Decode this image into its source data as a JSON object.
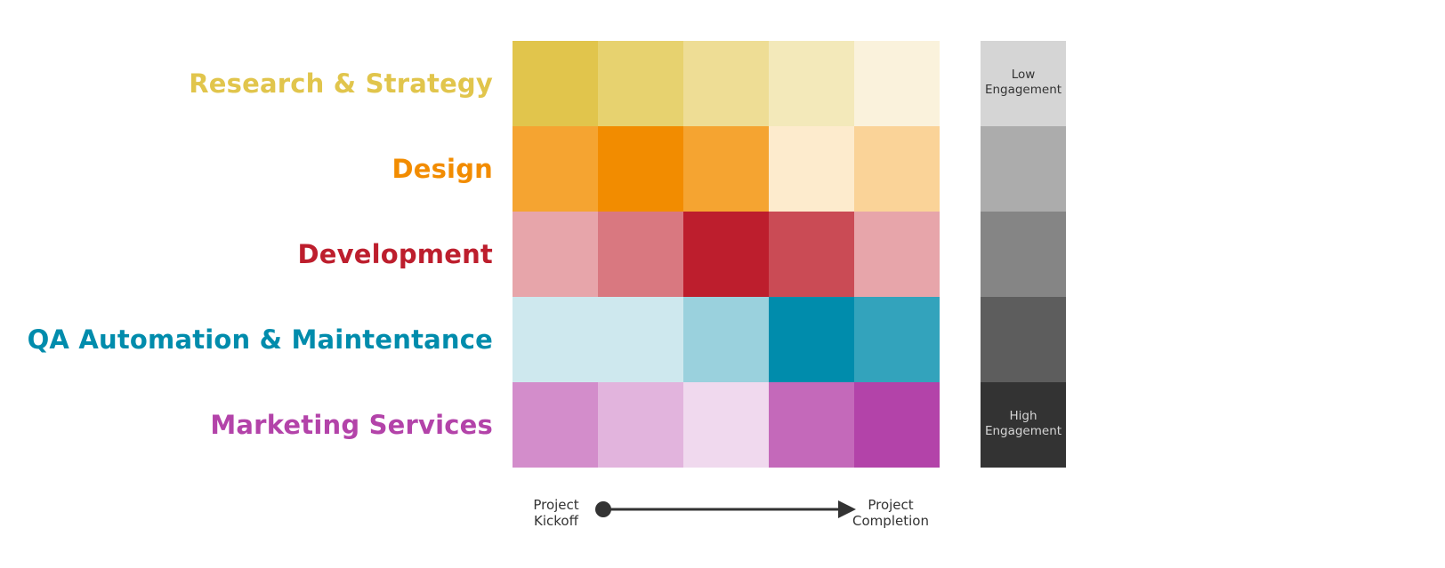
{
  "chart_data": {
    "type": "heatmap",
    "rows": [
      {
        "label": "Research & Strategy",
        "color": "#E1C54C",
        "values": [
          5,
          4,
          3,
          2,
          1
        ]
      },
      {
        "label": "Design",
        "color": "#F28C00",
        "values": [
          4,
          5,
          4,
          1,
          2
        ]
      },
      {
        "label": "Development",
        "color": "#BD1E2D",
        "values": [
          2,
          3,
          5,
          4,
          2
        ]
      },
      {
        "label": "QA Automation & Maintentance",
        "color": "#008CAC",
        "values": [
          1,
          1,
          2,
          5,
          4
        ]
      },
      {
        "label": "Marketing Services",
        "color": "#B343A9",
        "values": [
          3,
          2,
          1,
          4,
          5
        ]
      }
    ],
    "columns": 5,
    "cell_colors": [
      [
        "#E1C54C",
        "#E7D26F",
        "#EEDD95",
        "#F3E9BA",
        "#FAF2DC"
      ],
      [
        "#F5A431",
        "#F28C00",
        "#F5A431",
        "#FDEBCD",
        "#FAD398"
      ],
      [
        "#E7A5AA",
        "#D97880",
        "#BD1E2D",
        "#CA4B55",
        "#E7A5AA"
      ],
      [
        "#CEE8EE",
        "#CEE8EE",
        "#9AD1DD",
        "#008CAC",
        "#33A3BC"
      ],
      [
        "#D38DCB",
        "#E2B4DD",
        "#F0D9EE",
        "#C469BA",
        "#B343A9"
      ]
    ],
    "legend": {
      "steps": [
        "#D5D5D5",
        "#ACACAC",
        "#858585",
        "#5D5D5D",
        "#333333"
      ],
      "low_label": [
        "Low",
        "Engagement"
      ],
      "high_label": [
        "High",
        "Engagement"
      ],
      "low_text_color": "#333333",
      "high_text_color": "#D5D5D5"
    },
    "x_axis": {
      "start_label": [
        "Project",
        "Kickoff"
      ],
      "end_label": [
        "Project",
        "Completion"
      ],
      "line_color": "#333333"
    }
  }
}
